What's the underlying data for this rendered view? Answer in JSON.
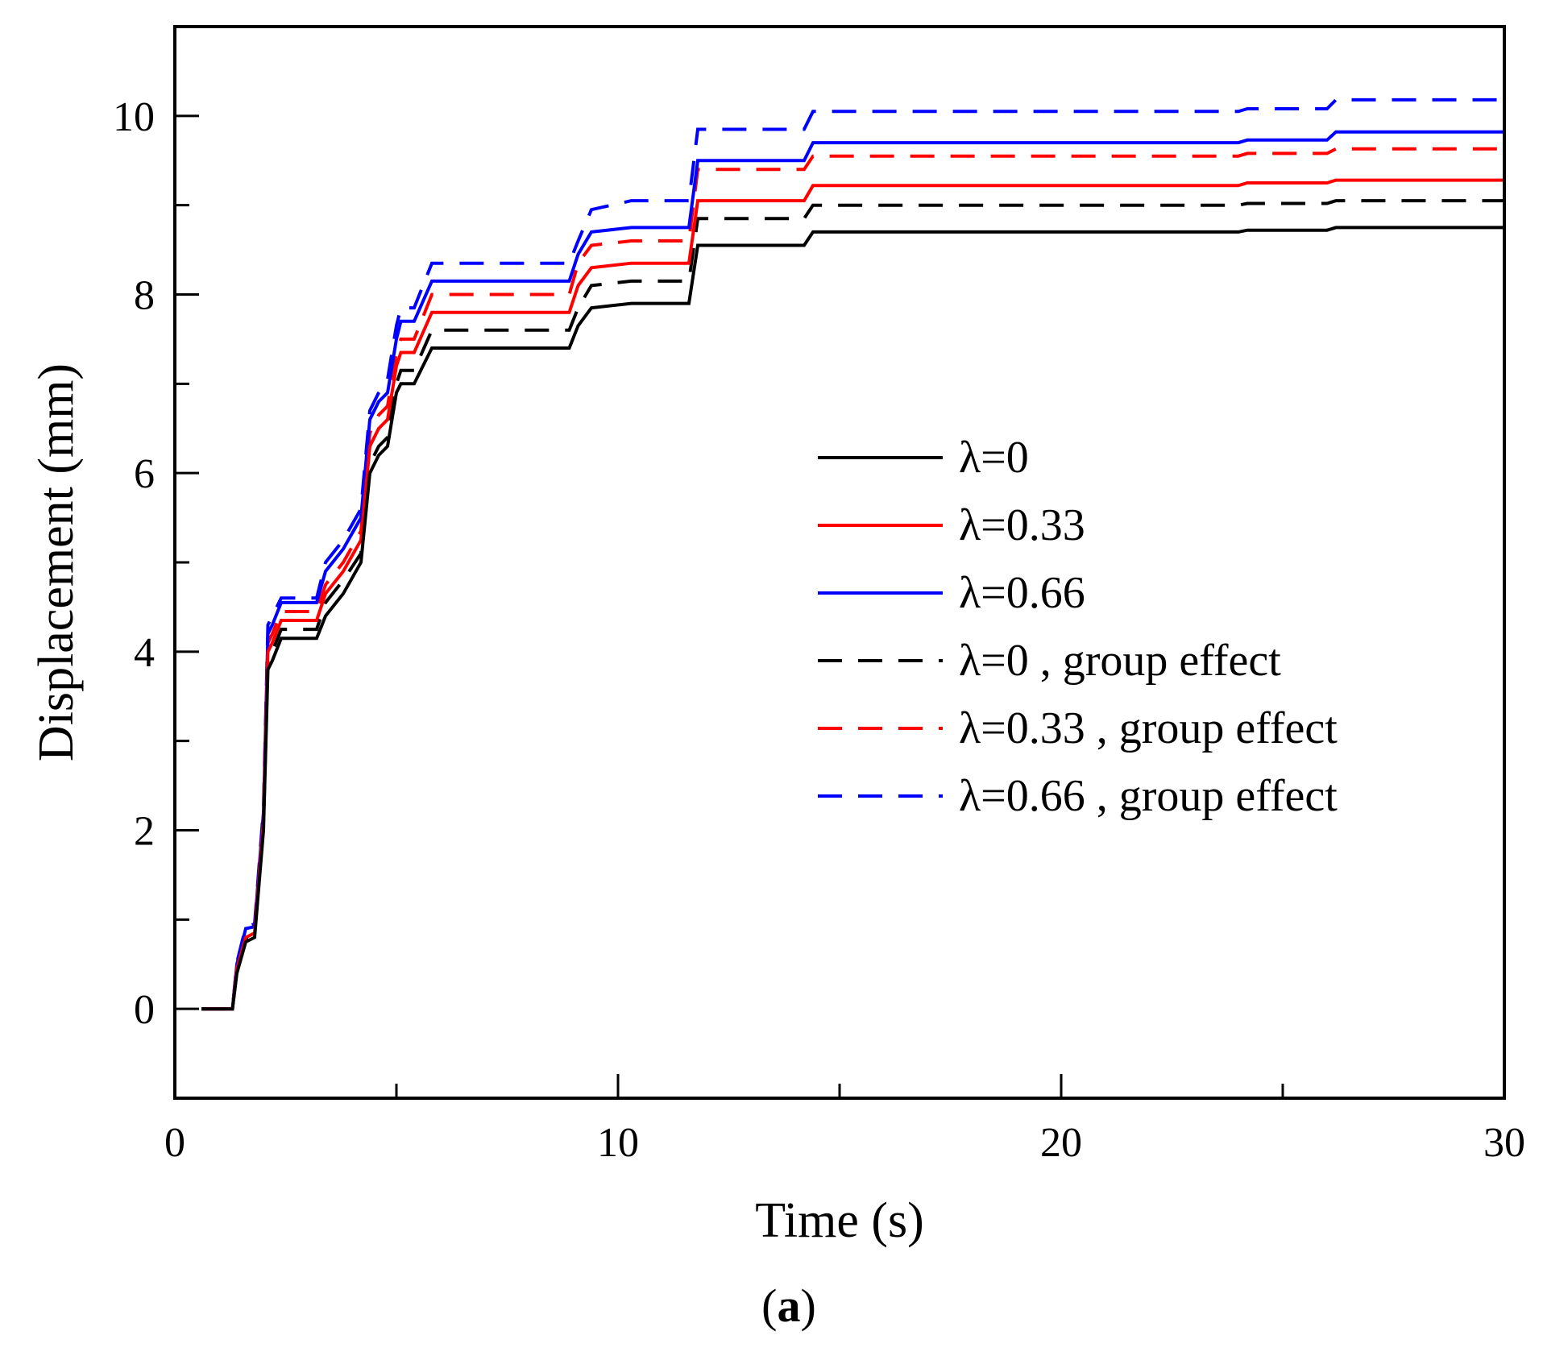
{
  "chart_data": {
    "type": "line",
    "title": "",
    "xlabel": "Time (s)",
    "ylabel": "Displacement (mm)",
    "xlim": [
      0,
      30
    ],
    "ylim": [
      -1,
      11
    ],
    "xticks": [
      0,
      10,
      20,
      30
    ],
    "xtick_labels": [
      "0",
      "10",
      "20",
      "30"
    ],
    "yticks": [
      0,
      2,
      4,
      6,
      8,
      10
    ],
    "ytick_labels": [
      "0",
      "2",
      "4",
      "6",
      "8",
      "10"
    ],
    "grid": false,
    "legend_position": "center-right",
    "caption": {
      "open": "(",
      "label": "a",
      "close": ")"
    },
    "x": [
      0.6,
      1.3,
      1.4,
      1.6,
      1.8,
      2.0,
      2.1,
      2.2,
      2.4,
      3.2,
      3.4,
      3.8,
      4.2,
      4.4,
      4.6,
      4.8,
      5.0,
      5.1,
      5.4,
      5.8,
      8.9,
      9.1,
      9.4,
      10.3,
      11.6,
      11.8,
      14.2,
      14.4,
      24.0,
      24.2,
      26.0,
      26.2,
      30.0
    ],
    "series": [
      {
        "name": "λ=0",
        "color": "#000000",
        "dash": "solid",
        "values": [
          0.0,
          0.0,
          0.4,
          0.75,
          0.8,
          2.0,
          3.8,
          3.9,
          4.15,
          4.15,
          4.4,
          4.65,
          5.0,
          6.0,
          6.2,
          6.3,
          6.9,
          7.0,
          7.0,
          7.4,
          7.4,
          7.65,
          7.85,
          7.9,
          7.9,
          8.55,
          8.55,
          8.7,
          8.7,
          8.72,
          8.72,
          8.75,
          8.75
        ]
      },
      {
        "name": "λ=0.33",
        "color": "#ff0000",
        "dash": "solid",
        "values": [
          0.0,
          0.0,
          0.45,
          0.8,
          0.85,
          2.1,
          4.0,
          4.1,
          4.35,
          4.35,
          4.65,
          4.9,
          5.25,
          6.3,
          6.5,
          6.6,
          7.2,
          7.35,
          7.35,
          7.8,
          7.8,
          8.1,
          8.3,
          8.35,
          8.35,
          9.05,
          9.05,
          9.22,
          9.22,
          9.25,
          9.25,
          9.28,
          9.28
        ]
      },
      {
        "name": "λ=0.66",
        "color": "#0000ff",
        "dash": "solid",
        "values": [
          0.0,
          0.0,
          0.5,
          0.9,
          0.92,
          2.2,
          4.2,
          4.3,
          4.55,
          4.55,
          4.9,
          5.15,
          5.5,
          6.6,
          6.8,
          6.9,
          7.5,
          7.7,
          7.7,
          8.15,
          8.15,
          8.45,
          8.7,
          8.75,
          8.75,
          9.5,
          9.5,
          9.7,
          9.7,
          9.73,
          9.73,
          9.82,
          9.82
        ]
      },
      {
        "name": "λ=0 , group effect",
        "color": "#000000",
        "dash": "dashed",
        "values": [
          0.0,
          0.0,
          0.42,
          0.78,
          0.82,
          2.05,
          3.9,
          4.0,
          4.25,
          4.25,
          4.55,
          4.8,
          5.1,
          6.1,
          6.3,
          6.4,
          7.0,
          7.15,
          7.15,
          7.6,
          7.6,
          7.85,
          8.1,
          8.15,
          8.15,
          8.85,
          8.85,
          9.0,
          9.0,
          9.02,
          9.02,
          9.05,
          9.05
        ]
      },
      {
        "name": "λ=0.33 , group effect",
        "color": "#ff0000",
        "dash": "dashed",
        "values": [
          0.0,
          0.0,
          0.48,
          0.85,
          0.88,
          2.15,
          4.1,
          4.2,
          4.45,
          4.45,
          4.75,
          5.0,
          5.35,
          6.45,
          6.65,
          6.75,
          7.35,
          7.5,
          7.5,
          8.0,
          8.0,
          8.35,
          8.55,
          8.6,
          8.6,
          9.4,
          9.4,
          9.55,
          9.55,
          9.58,
          9.58,
          9.63,
          9.63
        ]
      },
      {
        "name": "λ=0.66 , group effect",
        "color": "#0000ff",
        "dash": "dashed",
        "values": [
          0.0,
          0.0,
          0.52,
          0.92,
          0.95,
          2.25,
          4.3,
          4.4,
          4.6,
          4.6,
          5.0,
          5.25,
          5.6,
          6.7,
          6.9,
          7.05,
          7.65,
          7.85,
          7.85,
          8.35,
          8.35,
          8.6,
          8.95,
          9.05,
          9.05,
          9.85,
          9.85,
          10.05,
          10.05,
          10.08,
          10.08,
          10.18,
          10.18
        ]
      }
    ]
  }
}
